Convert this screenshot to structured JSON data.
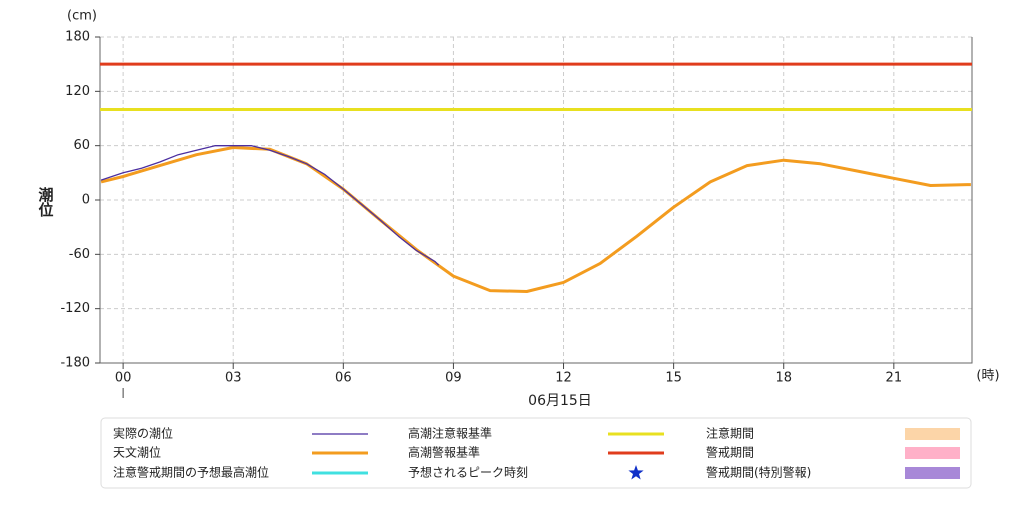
{
  "chart_data": {
    "type": "line",
    "y_unit": "(cm)",
    "y_label": "潮位",
    "x_unit": "(時)",
    "date_label": "06月15日",
    "xlim": [
      -0.63,
      23.13
    ],
    "ylim": [
      -180,
      180
    ],
    "xticks": [
      {
        "value": 0,
        "label": "00"
      },
      {
        "value": 3,
        "label": "03"
      },
      {
        "value": 6,
        "label": "06"
      },
      {
        "value": 9,
        "label": "09"
      },
      12,
      15,
      18,
      21
    ],
    "yticks": [
      -180,
      -120,
      -60,
      0,
      60,
      120,
      180
    ],
    "grid": true,
    "x": [
      -0.6,
      0,
      1,
      2,
      3,
      4,
      5,
      6,
      7,
      8,
      9,
      10,
      11,
      12,
      13,
      14,
      15,
      16,
      17,
      18,
      19,
      20,
      21,
      22,
      23,
      23.1
    ],
    "series": [
      {
        "name": "実際の潮位",
        "color": "#4b2fa0",
        "width": 1.3,
        "x": [
          -0.6,
          0,
          0.5,
          1,
          1.5,
          2,
          2.5,
          3,
          3.5,
          4,
          4.5,
          5,
          5.5,
          6,
          6.5,
          7,
          7.5,
          8,
          8.5,
          8.6
        ],
        "values": [
          22,
          30,
          35,
          42,
          50,
          55,
          60,
          60,
          60,
          55,
          48,
          40,
          28,
          12,
          -5,
          -22,
          -40,
          -56,
          -68,
          -72
        ]
      },
      {
        "name": "天文潮位",
        "color": "#f39c1f",
        "width": 3,
        "values": [
          20,
          26,
          38,
          50,
          58,
          56,
          40,
          12,
          -22,
          -55,
          -84,
          -100,
          -101,
          -91,
          -70,
          -40,
          -8,
          20,
          38,
          44,
          40,
          32,
          24,
          16,
          17,
          17
        ]
      }
    ],
    "hlines": [
      {
        "name": "高潮注意報基準",
        "value": 100,
        "color": "#e8e020"
      },
      {
        "name": "高潮警報基準",
        "value": 150,
        "color": "#e03c1c"
      }
    ],
    "legend_items": [
      {
        "name": "注意警戒期間の予想最高潮位",
        "color": "#40e0e0",
        "symbol": "line"
      },
      {
        "name": "予想されるピーク時刻",
        "color": "#1030c8",
        "symbol": "star"
      },
      {
        "name": "注意期間",
        "color": "#fcd5a8",
        "symbol": "rect"
      },
      {
        "name": "警戒期間",
        "color": "#ffb0c8",
        "symbol": "rect"
      },
      {
        "name": "警戒期間(特別警報)",
        "color": "#a888d8",
        "symbol": "rect"
      }
    ]
  }
}
